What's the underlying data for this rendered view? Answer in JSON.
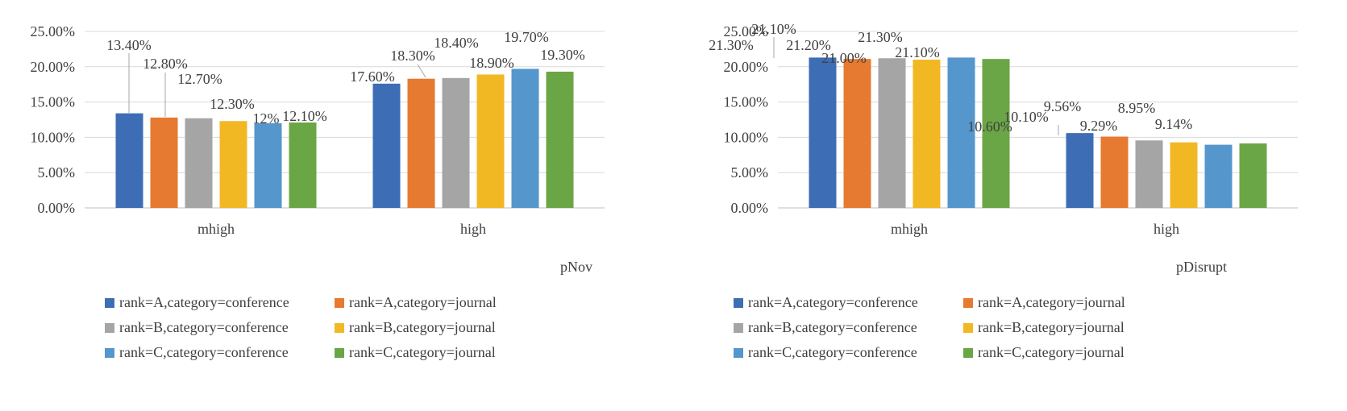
{
  "chart_data": [
    {
      "type": "bar",
      "xlabel": "pNov",
      "ylim": [
        0,
        0.25
      ],
      "yticks": [
        "0.00%",
        "5.00%",
        "10.00%",
        "15.00%",
        "20.00%",
        "25.00%"
      ],
      "categories": [
        "mhigh",
        "high"
      ],
      "series": [
        {
          "name": "rank=A,category=conference",
          "color": "#3D6DB5",
          "values": [
            0.134,
            0.176
          ],
          "labels": [
            "13.40%",
            "17.60%"
          ]
        },
        {
          "name": "rank=A,category=journal",
          "color": "#E57A30",
          "values": [
            0.128,
            0.183
          ],
          "labels": [
            "12.80%",
            "18.30%"
          ]
        },
        {
          "name": "rank=B,category=conference",
          "color": "#A5A5A5",
          "values": [
            0.127,
            0.184
          ],
          "labels": [
            "12.70%",
            "18.40%"
          ]
        },
        {
          "name": "rank=B,category=journal",
          "color": "#F2B824",
          "values": [
            0.123,
            0.189
          ],
          "labels": [
            "12.30%",
            "18.90%"
          ]
        },
        {
          "name": "rank=C,category=conference",
          "color": "#5596CC",
          "values": [
            0.12,
            0.197
          ],
          "labels": [
            "12%",
            "19.70%"
          ]
        },
        {
          "name": "rank=C,category=journal",
          "color": "#6BA646",
          "values": [
            0.121,
            0.193
          ],
          "labels": [
            "12.10%",
            "19.30%"
          ]
        }
      ],
      "grid": true,
      "legend": "bottom"
    },
    {
      "type": "bar",
      "xlabel": "pDisrupt",
      "ylim": [
        0,
        0.25
      ],
      "yticks": [
        "0.00%",
        "5.00%",
        "10.00%",
        "15.00%",
        "20.00%",
        "25.00%"
      ],
      "categories": [
        "mhigh",
        "high"
      ],
      "series": [
        {
          "name": "rank=A,category=conference",
          "color": "#3D6DB5",
          "values": [
            0.213,
            0.106
          ],
          "labels": [
            "21.30%",
            "10.60%"
          ]
        },
        {
          "name": "rank=A,category=journal",
          "color": "#E57A30",
          "values": [
            0.211,
            0.101
          ],
          "labels": [
            "21.10%",
            "10.10%"
          ]
        },
        {
          "name": "rank=B,category=conference",
          "color": "#A5A5A5",
          "values": [
            0.212,
            0.0956
          ],
          "labels": [
            "21.20%",
            "9.56%"
          ]
        },
        {
          "name": "rank=B,category=journal",
          "color": "#F2B824",
          "values": [
            0.21,
            0.0929
          ],
          "labels": [
            "21.00%",
            "9.29%"
          ]
        },
        {
          "name": "rank=C,category=conference",
          "color": "#5596CC",
          "values": [
            0.213,
            0.0895
          ],
          "labels": [
            "21.30%",
            "8.95%"
          ]
        },
        {
          "name": "rank=C,category=journal",
          "color": "#6BA646",
          "values": [
            0.211,
            0.0914
          ],
          "labels": [
            "21.10%",
            "9.14%"
          ]
        }
      ],
      "grid": true,
      "legend": "bottom"
    }
  ]
}
